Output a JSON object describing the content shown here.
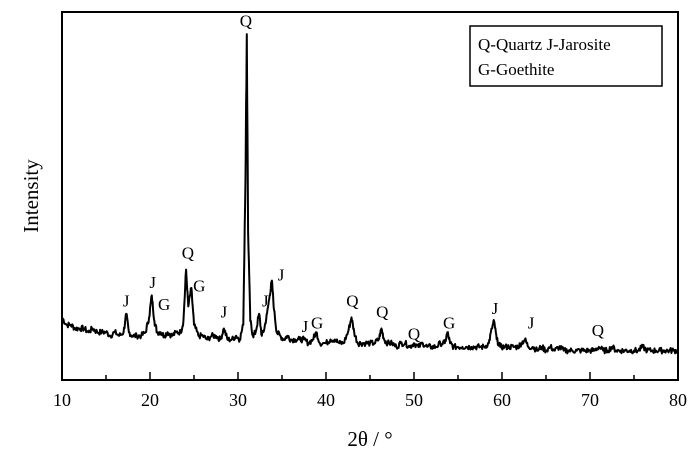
{
  "chart_data": {
    "type": "line",
    "title": "",
    "xlabel": "2θ / °",
    "ylabel": "Intensity",
    "xlim": [
      10,
      80
    ],
    "ylim": [
      0,
      100
    ],
    "xticks": [
      10,
      20,
      30,
      40,
      50,
      60,
      70,
      80
    ],
    "grid": false,
    "y_tick_labels_shown": false,
    "legend": {
      "placement": "top-right",
      "lines": [
        "Q-Quartz  J-Jarosite",
        "G-Goethite"
      ]
    },
    "series": [
      {
        "name": "",
        "color": "#000000",
        "points": [
          [
            10.0,
            17
          ],
          [
            10.5,
            15
          ],
          [
            11.0,
            15
          ],
          [
            11.5,
            14
          ],
          [
            12.0,
            14
          ],
          [
            12.5,
            14
          ],
          [
            13.0,
            13
          ],
          [
            13.5,
            14
          ],
          [
            14.0,
            13
          ],
          [
            14.5,
            13
          ],
          [
            15.0,
            13
          ],
          [
            15.5,
            12
          ],
          [
            16.0,
            13
          ],
          [
            16.5,
            12
          ],
          [
            17.0,
            13
          ],
          [
            17.3,
            18
          ],
          [
            17.6,
            13
          ],
          [
            18.0,
            12
          ],
          [
            18.5,
            12
          ],
          [
            19.0,
            12
          ],
          [
            19.5,
            13
          ],
          [
            19.9,
            17
          ],
          [
            20.2,
            23
          ],
          [
            20.5,
            16
          ],
          [
            20.8,
            13
          ],
          [
            21.2,
            13
          ],
          [
            21.6,
            12
          ],
          [
            22.0,
            13
          ],
          [
            22.5,
            12
          ],
          [
            23.0,
            13
          ],
          [
            23.5,
            13
          ],
          [
            23.8,
            16
          ],
          [
            24.1,
            30
          ],
          [
            24.35,
            20
          ],
          [
            24.7,
            25
          ],
          [
            25.0,
            15
          ],
          [
            25.5,
            12
          ],
          [
            26.0,
            12
          ],
          [
            26.5,
            11
          ],
          [
            27.0,
            12
          ],
          [
            27.5,
            12
          ],
          [
            28.0,
            11
          ],
          [
            28.4,
            14
          ],
          [
            28.8,
            11
          ],
          [
            29.3,
            11
          ],
          [
            29.8,
            12
          ],
          [
            30.2,
            11
          ],
          [
            30.6,
            15
          ],
          [
            30.85,
            55
          ],
          [
            31.0,
            94
          ],
          [
            31.15,
            40
          ],
          [
            31.4,
            16
          ],
          [
            31.7,
            12
          ],
          [
            32.0,
            13
          ],
          [
            32.4,
            18
          ],
          [
            32.7,
            12
          ],
          [
            33.0,
            14
          ],
          [
            33.3,
            18
          ],
          [
            33.6,
            23
          ],
          [
            33.85,
            27
          ],
          [
            34.1,
            19
          ],
          [
            34.4,
            13
          ],
          [
            34.8,
            12
          ],
          [
            35.2,
            11
          ],
          [
            35.6,
            12
          ],
          [
            36.0,
            11
          ],
          [
            36.5,
            11
          ],
          [
            37.0,
            11
          ],
          [
            37.5,
            11
          ],
          [
            38.0,
            10
          ],
          [
            38.5,
            11
          ],
          [
            38.9,
            13
          ],
          [
            39.3,
            10
          ],
          [
            40.0,
            10
          ],
          [
            40.5,
            11
          ],
          [
            41.0,
            11
          ],
          [
            41.5,
            10
          ],
          [
            42.0,
            10
          ],
          [
            42.5,
            13
          ],
          [
            42.9,
            17
          ],
          [
            43.2,
            13
          ],
          [
            43.6,
            10
          ],
          [
            44.0,
            10
          ],
          [
            44.5,
            10
          ],
          [
            45.0,
            10
          ],
          [
            45.5,
            10
          ],
          [
            46.0,
            11
          ],
          [
            46.3,
            14
          ],
          [
            46.6,
            11
          ],
          [
            47.0,
            10
          ],
          [
            47.5,
            10
          ],
          [
            48.0,
            9
          ],
          [
            48.5,
            10
          ],
          [
            49.0,
            10
          ],
          [
            49.5,
            9
          ],
          [
            50.0,
            10
          ],
          [
            50.5,
            9
          ],
          [
            51.0,
            10
          ],
          [
            51.5,
            9
          ],
          [
            52.0,
            9
          ],
          [
            52.5,
            9
          ],
          [
            53.0,
            10
          ],
          [
            53.5,
            10
          ],
          [
            53.8,
            13
          ],
          [
            54.1,
            10
          ],
          [
            54.5,
            9
          ],
          [
            55.0,
            9
          ],
          [
            55.5,
            9
          ],
          [
            56.0,
            9
          ],
          [
            56.5,
            9
          ],
          [
            57.0,
            9
          ],
          [
            57.5,
            9
          ],
          [
            58.0,
            9
          ],
          [
            58.5,
            10
          ],
          [
            58.85,
            14
          ],
          [
            59.1,
            16
          ],
          [
            59.4,
            11
          ],
          [
            59.8,
            9
          ],
          [
            60.3,
            9
          ],
          [
            60.8,
            9
          ],
          [
            61.3,
            9
          ],
          [
            61.8,
            9
          ],
          [
            62.2,
            10
          ],
          [
            62.6,
            11
          ],
          [
            63.0,
            9
          ],
          [
            63.5,
            9
          ],
          [
            64.0,
            8
          ],
          [
            64.5,
            9
          ],
          [
            65.0,
            8
          ],
          [
            65.5,
            9
          ],
          [
            66.0,
            8
          ],
          [
            66.5,
            9
          ],
          [
            67.0,
            8
          ],
          [
            67.5,
            8
          ],
          [
            68.0,
            8
          ],
          [
            68.5,
            8
          ],
          [
            69.0,
            8
          ],
          [
            69.5,
            8
          ],
          [
            70.0,
            8
          ],
          [
            70.5,
            8
          ],
          [
            71.0,
            9
          ],
          [
            71.5,
            8
          ],
          [
            72.0,
            8
          ],
          [
            72.5,
            9
          ],
          [
            73.0,
            8
          ],
          [
            73.5,
            8
          ],
          [
            74.0,
            8
          ],
          [
            74.5,
            8
          ],
          [
            75.0,
            8
          ],
          [
            75.5,
            8
          ],
          [
            76.0,
            9
          ],
          [
            76.5,
            8
          ],
          [
            77.0,
            8
          ],
          [
            77.5,
            8
          ],
          [
            78.0,
            8
          ],
          [
            78.5,
            8
          ],
          [
            79.0,
            8
          ],
          [
            79.5,
            8
          ],
          [
            80.0,
            8
          ]
        ]
      }
    ],
    "annotations": [
      {
        "text": "J",
        "x": 17.3,
        "y": 20
      },
      {
        "text": "J",
        "x": 20.3,
        "y": 25
      },
      {
        "text": "G",
        "x": 21.6,
        "y": 19
      },
      {
        "text": "Q",
        "x": 24.3,
        "y": 33
      },
      {
        "text": "G",
        "x": 25.6,
        "y": 24
      },
      {
        "text": "J",
        "x": 28.4,
        "y": 17
      },
      {
        "text": "Q",
        "x": 30.9,
        "y": 96
      },
      {
        "text": "J",
        "x": 33.1,
        "y": 20
      },
      {
        "text": "J",
        "x": 34.9,
        "y": 27
      },
      {
        "text": "J",
        "x": 37.6,
        "y": 13
      },
      {
        "text": "G",
        "x": 39.0,
        "y": 14
      },
      {
        "text": "Q",
        "x": 43.0,
        "y": 20
      },
      {
        "text": "Q",
        "x": 46.4,
        "y": 17
      },
      {
        "text": "Q",
        "x": 50.0,
        "y": 11
      },
      {
        "text": "G",
        "x": 54.0,
        "y": 14
      },
      {
        "text": "J",
        "x": 59.2,
        "y": 18
      },
      {
        "text": "J",
        "x": 63.3,
        "y": 14
      },
      {
        "text": "Q",
        "x": 70.9,
        "y": 12
      }
    ]
  }
}
